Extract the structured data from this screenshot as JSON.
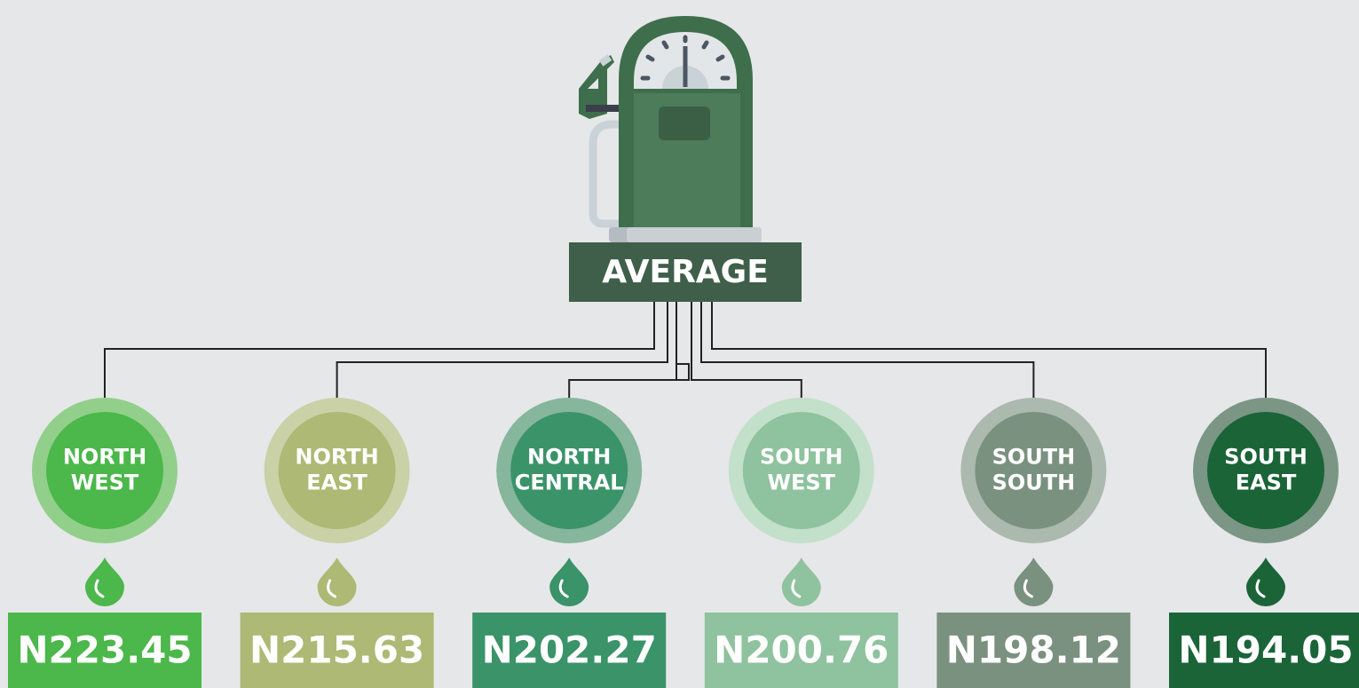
{
  "header": {
    "label": "AVERAGE"
  },
  "regions": [
    {
      "name": [
        "NORTH",
        "WEST"
      ],
      "price": "N223.45"
    },
    {
      "name": [
        "NORTH",
        "EAST"
      ],
      "price": "N215.63"
    },
    {
      "name": [
        "NORTH",
        "CENTRAL"
      ],
      "price": "N202.27"
    },
    {
      "name": [
        "SOUTH",
        "WEST"
      ],
      "price": "N200.76"
    },
    {
      "name": [
        "SOUTH",
        "SOUTH"
      ],
      "price": "N198.12"
    },
    {
      "name": [
        "SOUTH",
        "EAST"
      ],
      "price": "N194.05"
    }
  ]
}
